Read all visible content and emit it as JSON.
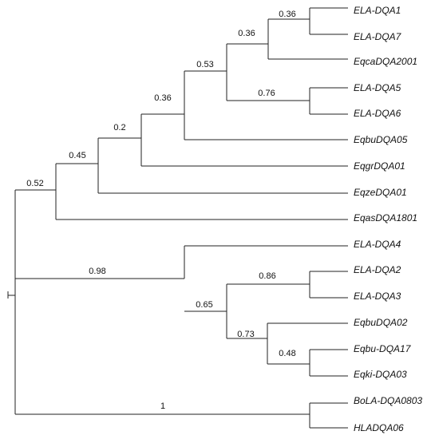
{
  "tree": {
    "taxa": [
      "ELA-DQA1",
      "ELA-DQA7",
      "EqcaDQA2001",
      "ELA-DQA5",
      "ELA-DQA6",
      "EqbuDQA05",
      "EqgrDQA01",
      "EqzeDQA01",
      "EqasDQA1801",
      "ELA-DQA4",
      "ELA-DQA2",
      "ELA-DQA3",
      "EqbuDQA02",
      "Eqbu-DQA17",
      "Eqki-DQA03",
      "BoLA-DQA0803",
      "HLADQA06"
    ],
    "support_values": [
      "0.36",
      "0.36",
      "0.53",
      "0.76",
      "0.36",
      "0.2",
      "0.45",
      "0.52",
      "0.98",
      "0.86",
      "0.65",
      "0.73",
      "0.48",
      "1"
    ]
  }
}
